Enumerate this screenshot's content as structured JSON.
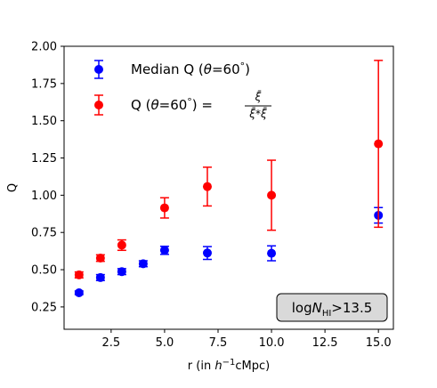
{
  "chart_data": {
    "type": "scatter",
    "xlabel": "r (in h⁻¹cMpc)",
    "xlabel_parts": [
      "r (in ",
      "h",
      "−1",
      "cMpc)"
    ],
    "ylabel": "Q",
    "xlim": [
      0.3,
      15.7
    ],
    "ylim": [
      0.1,
      2.0
    ],
    "xticks": [
      2.5,
      5.0,
      7.5,
      10.0,
      12.5,
      15.0
    ],
    "xtick_labels": [
      "2.5",
      "5.0",
      "7.5",
      "10.0",
      "12.5",
      "15.0"
    ],
    "yticks": [
      0.25,
      0.5,
      0.75,
      1.0,
      1.25,
      1.5,
      1.75,
      2.0
    ],
    "ytick_labels": [
      "0.25",
      "0.50",
      "0.75",
      "1.00",
      "1.25",
      "1.50",
      "1.75",
      "2.00"
    ],
    "grid": false,
    "legend_position": "top-left",
    "series": [
      {
        "name": "Median Q (θ=60°)",
        "legend_parts": [
          "Median Q (",
          "θ",
          "=60",
          "°",
          ")"
        ],
        "color": "#0000ff",
        "x": [
          1,
          2,
          3,
          4,
          5,
          7,
          10,
          15
        ],
        "y": [
          0.345,
          0.447,
          0.487,
          0.54,
          0.63,
          0.612,
          0.61,
          0.865
        ],
        "yerr": [
          0.012,
          0.02,
          0.02,
          0.02,
          0.027,
          0.043,
          0.05,
          0.052
        ]
      },
      {
        "name": "Q (θ=60°) = ξ̄ / (ξ̄*ξ̄)",
        "legend_parts": [
          "Q (",
          "θ",
          "=60",
          "°",
          ") =",
          "ξ̄",
          "ξ̄*ξ̄"
        ],
        "color": "#ff0000",
        "x": [
          1,
          2,
          3,
          5,
          7,
          10,
          15
        ],
        "y": [
          0.465,
          0.578,
          0.665,
          0.915,
          1.058,
          1.0,
          1.345
        ],
        "yerr": [
          0.02,
          0.022,
          0.035,
          0.068,
          0.13,
          0.235,
          0.56
        ]
      }
    ],
    "annotation": {
      "parts": [
        "log",
        "N",
        "HI",
        ">13.5"
      ],
      "text": "logN_HI>13.5",
      "position": "bottom-right",
      "box_color": "#d9d9d9"
    }
  }
}
